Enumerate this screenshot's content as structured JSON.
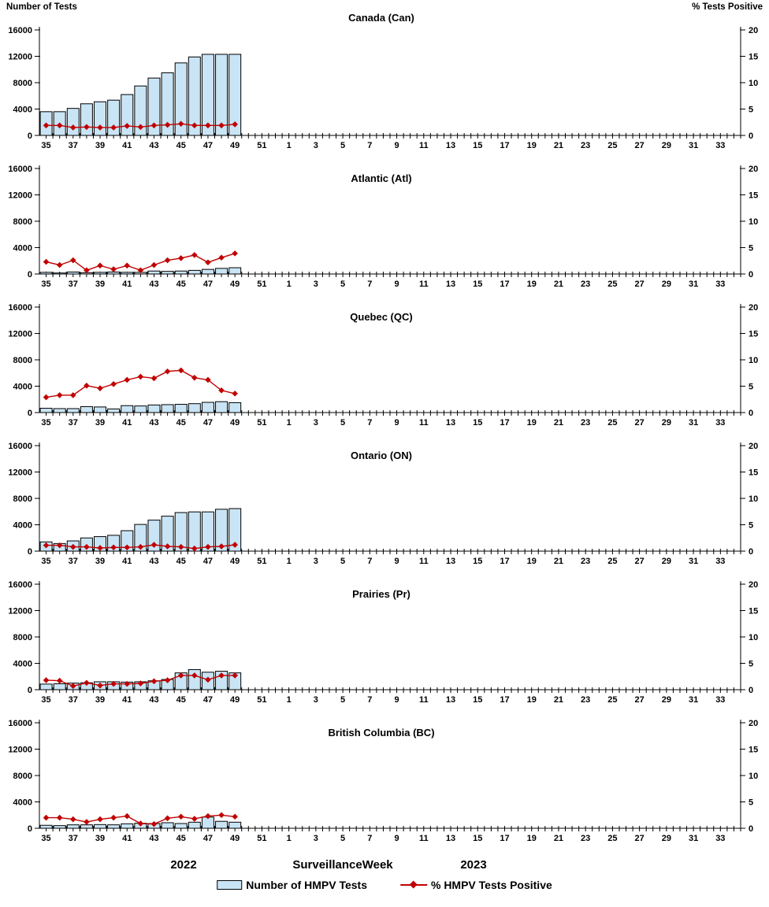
{
  "header": {
    "left_axis_title": "Number of Tests",
    "right_axis_title": "% Tests Positive"
  },
  "footer": {
    "year_left": "2022",
    "axis_title": "SurveillanceWeek",
    "year_right": "2023"
  },
  "legend": {
    "items": [
      {
        "label": "Number of HMPV Tests",
        "swatch": "bar",
        "color": "#C9E4F5"
      },
      {
        "label": "% HMPV Tests Positive",
        "swatch": "line-diamond",
        "color": "#C00000"
      }
    ]
  },
  "x_axis": {
    "title": "SurveillanceWeek",
    "weeks": [
      35,
      36,
      37,
      38,
      39,
      40,
      41,
      42,
      43,
      44,
      45,
      46,
      47,
      48,
      49,
      50,
      51,
      52,
      1,
      2,
      3,
      4,
      5,
      6,
      7,
      8,
      9,
      10,
      11,
      12,
      13,
      14,
      15,
      16,
      17,
      18,
      19,
      20,
      21,
      22,
      23,
      24,
      25,
      26,
      27,
      28,
      29,
      30,
      31,
      32,
      33,
      34
    ],
    "labeled_weeks": [
      35,
      37,
      39,
      41,
      43,
      45,
      47,
      49,
      51,
      1,
      3,
      5,
      7,
      9,
      11,
      13,
      15,
      17,
      19,
      21,
      23,
      25,
      27,
      29,
      31,
      33
    ]
  },
  "chart_data": [
    {
      "id": "canada",
      "type": "bar+line",
      "title": "Canada (Can)",
      "left_axis": {
        "title": "Number of Tests",
        "max": 16000,
        "ticks": [
          0,
          4000,
          8000,
          12000,
          16000
        ]
      },
      "right_axis": {
        "title": "% Tests Positive",
        "max": 20,
        "ticks": [
          0,
          5,
          10,
          15,
          20
        ]
      },
      "bar_weeks": [
        35,
        36,
        37,
        38,
        39,
        40,
        41,
        42,
        43,
        44,
        45,
        46,
        47,
        48,
        49
      ],
      "bars": {
        "name": "Number of HMPV Tests",
        "values": [
          3600,
          3600,
          4100,
          4800,
          5100,
          5350,
          6200,
          7500,
          8700,
          9500,
          11000,
          11900,
          12300,
          12300,
          12300
        ]
      },
      "line": {
        "name": "% HMPV Tests Positive",
        "values": [
          1.9,
          1.9,
          1.5,
          1.6,
          1.5,
          1.5,
          1.8,
          1.6,
          1.9,
          2.0,
          2.2,
          1.9,
          1.9,
          1.9,
          2.1
        ]
      }
    },
    {
      "id": "atlantic",
      "type": "bar+line",
      "title": "Atlantic (Atl)",
      "left_axis": {
        "title": "Number of Tests",
        "max": 16000,
        "ticks": [
          0,
          4000,
          8000,
          12000,
          16000
        ]
      },
      "right_axis": {
        "title": "% Tests Positive",
        "max": 20,
        "ticks": [
          0,
          5,
          10,
          15,
          20
        ]
      },
      "bar_weeks": [
        35,
        36,
        37,
        38,
        39,
        40,
        41,
        42,
        43,
        44,
        45,
        46,
        47,
        48,
        49
      ],
      "bars": {
        "name": "Number of HMPV Tests",
        "values": [
          250,
          150,
          300,
          200,
          250,
          300,
          250,
          250,
          450,
          400,
          450,
          550,
          700,
          850,
          950
        ]
      },
      "line": {
        "name": "% HMPV Tests Positive",
        "values": [
          2.3,
          1.7,
          2.6,
          0.7,
          1.6,
          0.9,
          1.6,
          0.7,
          1.7,
          2.6,
          3.0,
          3.6,
          2.2,
          3.1,
          3.9
        ]
      }
    },
    {
      "id": "quebec",
      "type": "bar+line",
      "title": "Quebec (QC)",
      "left_axis": {
        "title": "Number of Tests",
        "max": 16000,
        "ticks": [
          0,
          4000,
          8000,
          12000,
          16000
        ]
      },
      "right_axis": {
        "title": "% Tests Positive",
        "max": 20,
        "ticks": [
          0,
          5,
          10,
          15,
          20
        ]
      },
      "bar_weeks": [
        35,
        36,
        37,
        38,
        39,
        40,
        41,
        42,
        43,
        44,
        45,
        46,
        47,
        48,
        49
      ],
      "bars": {
        "name": "Number of HMPV Tests",
        "values": [
          650,
          600,
          600,
          900,
          850,
          550,
          1050,
          1000,
          1150,
          1200,
          1250,
          1350,
          1550,
          1650,
          1500
        ]
      },
      "line": {
        "name": "% HMPV Tests Positive",
        "values": [
          2.9,
          3.3,
          3.3,
          5.1,
          4.6,
          5.4,
          6.2,
          6.8,
          6.5,
          7.8,
          8.0,
          6.6,
          6.2,
          4.2,
          3.6
        ]
      }
    },
    {
      "id": "ontario",
      "type": "bar+line",
      "title": "Ontario (ON)",
      "left_axis": {
        "title": "Number of Tests",
        "max": 16000,
        "ticks": [
          0,
          4000,
          8000,
          12000,
          16000
        ]
      },
      "right_axis": {
        "title": "% Tests Positive",
        "max": 20,
        "ticks": [
          0,
          5,
          10,
          15,
          20
        ]
      },
      "bar_weeks": [
        35,
        36,
        37,
        38,
        39,
        40,
        41,
        42,
        43,
        44,
        45,
        46,
        47,
        48,
        49
      ],
      "bars": {
        "name": "Number of HMPV Tests",
        "values": [
          1400,
          1150,
          1550,
          2000,
          2200,
          2400,
          3100,
          4050,
          4700,
          5300,
          5850,
          5950,
          5950,
          6350,
          6450
        ]
      },
      "line": {
        "name": "% HMPV Tests Positive",
        "values": [
          1.1,
          1.1,
          0.8,
          0.8,
          0.6,
          0.7,
          0.7,
          0.8,
          1.2,
          0.9,
          0.8,
          0.5,
          0.8,
          0.9,
          1.2
        ]
      }
    },
    {
      "id": "prairies",
      "type": "bar+line",
      "title": "Prairies (Pr)",
      "left_axis": {
        "title": "Number of Tests",
        "max": 16000,
        "ticks": [
          0,
          4000,
          8000,
          12000,
          16000
        ]
      },
      "right_axis": {
        "title": "% Tests Positive",
        "max": 20,
        "ticks": [
          0,
          5,
          10,
          15,
          20
        ]
      },
      "bar_weeks": [
        35,
        36,
        37,
        38,
        39,
        40,
        41,
        42,
        43,
        44,
        45,
        46,
        47,
        48,
        49
      ],
      "bars": {
        "name": "Number of HMPV Tests",
        "values": [
          850,
          900,
          1000,
          1050,
          1200,
          1200,
          1150,
          1200,
          1350,
          1550,
          2550,
          3050,
          2650,
          2800,
          2550
        ]
      },
      "line": {
        "name": "% HMPV Tests Positive",
        "values": [
          1.8,
          1.7,
          0.7,
          1.3,
          0.8,
          1.1,
          1.1,
          1.2,
          1.6,
          1.8,
          2.7,
          2.7,
          1.9,
          2.7,
          2.7
        ]
      }
    },
    {
      "id": "british-columbia",
      "type": "bar+line",
      "title": "British Columbia (BC)",
      "left_axis": {
        "title": "Number of Tests",
        "max": 16000,
        "ticks": [
          0,
          4000,
          8000,
          12000,
          16000
        ]
      },
      "right_axis": {
        "title": "% Tests Positive",
        "max": 20,
        "ticks": [
          0,
          5,
          10,
          15,
          20
        ]
      },
      "bar_weeks": [
        35,
        36,
        37,
        38,
        39,
        40,
        41,
        42,
        43,
        44,
        45,
        46,
        47,
        48,
        49
      ],
      "bars": {
        "name": "Number of HMPV Tests",
        "values": [
          450,
          400,
          520,
          520,
          560,
          520,
          680,
          760,
          720,
          840,
          720,
          920,
          1700,
          1050,
          920
        ]
      },
      "line": {
        "name": "% HMPV Tests Positive",
        "values": [
          2.0,
          2.0,
          1.7,
          1.2,
          1.7,
          2.0,
          2.3,
          0.9,
          0.8,
          1.9,
          2.2,
          1.8,
          2.3,
          2.5,
          2.2
        ]
      }
    }
  ]
}
